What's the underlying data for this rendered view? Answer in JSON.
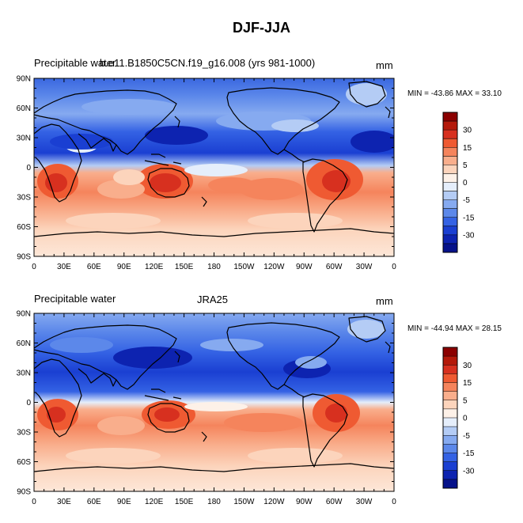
{
  "title": "DJF-JJA",
  "panels": [
    {
      "left_label": "Precipitable water",
      "center_label": "b.e11.B1850C5CN.f19_g16.008 (yrs 981-1000)",
      "units": "mm",
      "minmax": "MIN = -43.86 MAX =  33.10"
    },
    {
      "left_label": "Precipitable water",
      "center_label": "JRA25",
      "units": "mm",
      "minmax": "MIN = -44.94 MAX =  28.15"
    }
  ],
  "lat_ticks": [
    "90N",
    "60N",
    "30N",
    "0",
    "30S",
    "60S",
    "90S"
  ],
  "lon_ticks": [
    "0",
    "30E",
    "60E",
    "90E",
    "120E",
    "150E",
    "180",
    "150W",
    "120W",
    "90W",
    "60W",
    "30W",
    "0"
  ],
  "colorbar": {
    "labels": [
      "30",
      "15",
      "5",
      "0",
      "-5",
      "-15",
      "-30"
    ],
    "colors": [
      "#8b0000",
      "#b4190a",
      "#d7301f",
      "#ef5a32",
      "#f5845c",
      "#f9ae8c",
      "#fcd4bc",
      "#fdf1e8",
      "#e5eefb",
      "#b4ccf5",
      "#86aaf0",
      "#5c88ea",
      "#3462e4",
      "#1a3fd2",
      "#0d23b0",
      "#06128a"
    ]
  }
}
